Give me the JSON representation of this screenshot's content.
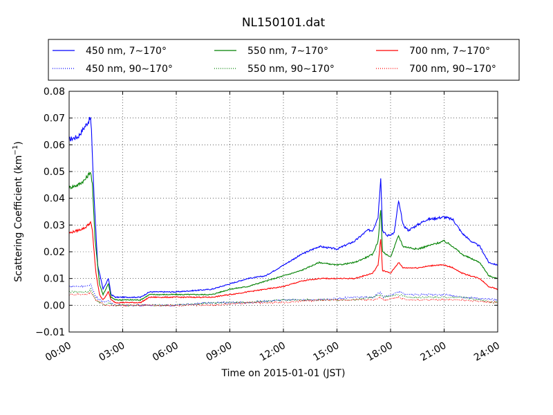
{
  "chart_data": {
    "type": "line",
    "title": "NL150101.dat",
    "xlabel": "Time on 2015-01-01 (JST)",
    "ylabel_main": "Scattering Coefficient (km",
    "ylabel_sup": "−1",
    "ylabel_close": ")",
    "xlim": [
      0,
      24
    ],
    "ylim": [
      -0.01,
      0.08
    ],
    "x_tick_values": [
      0,
      3,
      6,
      9,
      12,
      15,
      18,
      21,
      24
    ],
    "x_tick_labels": [
      "00:00",
      "03:00",
      "06:00",
      "09:00",
      "12:00",
      "15:00",
      "18:00",
      "21:00",
      "24:00"
    ],
    "y_tick_values": [
      -0.01,
      0.0,
      0.01,
      0.02,
      0.03,
      0.04,
      0.05,
      0.06,
      0.07,
      0.08
    ],
    "y_tick_labels": [
      "−0.01",
      "0.00",
      "0.01",
      "0.02",
      "0.03",
      "0.04",
      "0.05",
      "0.06",
      "0.07",
      "0.08"
    ],
    "grid": "dotted",
    "legend_position": "top, above plot, 3 columns",
    "series": [
      {
        "name": "450 nm, 7∼170°",
        "color": "#0000ff",
        "style": "solid",
        "points": [
          [
            0,
            0.062
          ],
          [
            0.5,
            0.063
          ],
          [
            0.9,
            0.067
          ],
          [
            1.2,
            0.07
          ],
          [
            1.25,
            0.065
          ],
          [
            1.4,
            0.04
          ],
          [
            1.6,
            0.015
          ],
          [
            1.9,
            0.006
          ],
          [
            2.2,
            0.01
          ],
          [
            2.35,
            0.004
          ],
          [
            2.6,
            0.003
          ],
          [
            3.0,
            0.003
          ],
          [
            4.0,
            0.003
          ],
          [
            4.5,
            0.005
          ],
          [
            6.0,
            0.005
          ],
          [
            8.0,
            0.006
          ],
          [
            9.0,
            0.008
          ],
          [
            10.0,
            0.01
          ],
          [
            11.0,
            0.011
          ],
          [
            12.0,
            0.015
          ],
          [
            13.0,
            0.019
          ],
          [
            14.0,
            0.022
          ],
          [
            15.0,
            0.021
          ],
          [
            16.0,
            0.024
          ],
          [
            16.7,
            0.028
          ],
          [
            17.0,
            0.028
          ],
          [
            17.3,
            0.033
          ],
          [
            17.45,
            0.048
          ],
          [
            17.55,
            0.028
          ],
          [
            17.8,
            0.026
          ],
          [
            18.2,
            0.027
          ],
          [
            18.45,
            0.039
          ],
          [
            18.7,
            0.03
          ],
          [
            19.0,
            0.028
          ],
          [
            19.5,
            0.03
          ],
          [
            20.0,
            0.032
          ],
          [
            21.0,
            0.033
          ],
          [
            21.5,
            0.032
          ],
          [
            22.0,
            0.027
          ],
          [
            22.5,
            0.024
          ],
          [
            23.0,
            0.022
          ],
          [
            23.5,
            0.016
          ],
          [
            24.0,
            0.015
          ]
        ]
      },
      {
        "name": "550 nm, 7∼170°",
        "color": "#008000",
        "style": "solid",
        "points": [
          [
            0,
            0.044
          ],
          [
            0.5,
            0.045
          ],
          [
            0.9,
            0.047
          ],
          [
            1.2,
            0.05
          ],
          [
            1.3,
            0.045
          ],
          [
            1.45,
            0.025
          ],
          [
            1.7,
            0.008
          ],
          [
            1.9,
            0.004
          ],
          [
            2.2,
            0.008
          ],
          [
            2.35,
            0.003
          ],
          [
            2.6,
            0.002
          ],
          [
            4.0,
            0.002
          ],
          [
            4.5,
            0.004
          ],
          [
            6.0,
            0.004
          ],
          [
            8.0,
            0.004
          ],
          [
            9.0,
            0.006
          ],
          [
            10.0,
            0.007
          ],
          [
            11.0,
            0.009
          ],
          [
            12.0,
            0.011
          ],
          [
            13.0,
            0.013
          ],
          [
            14.0,
            0.016
          ],
          [
            15.0,
            0.015
          ],
          [
            16.0,
            0.016
          ],
          [
            17.0,
            0.019
          ],
          [
            17.3,
            0.024
          ],
          [
            17.45,
            0.036
          ],
          [
            17.55,
            0.02
          ],
          [
            18.0,
            0.018
          ],
          [
            18.45,
            0.026
          ],
          [
            18.7,
            0.022
          ],
          [
            19.5,
            0.021
          ],
          [
            20.5,
            0.023
          ],
          [
            21.0,
            0.024
          ],
          [
            21.5,
            0.022
          ],
          [
            22.0,
            0.019
          ],
          [
            23.0,
            0.016
          ],
          [
            23.5,
            0.011
          ],
          [
            24.0,
            0.01
          ]
        ]
      },
      {
        "name": "700 nm, 7∼170°",
        "color": "#ff0000",
        "style": "solid",
        "points": [
          [
            0,
            0.027
          ],
          [
            0.5,
            0.028
          ],
          [
            0.9,
            0.029
          ],
          [
            1.2,
            0.031
          ],
          [
            1.3,
            0.028
          ],
          [
            1.5,
            0.012
          ],
          [
            1.7,
            0.004
          ],
          [
            1.9,
            0.002
          ],
          [
            2.2,
            0.005
          ],
          [
            2.35,
            0.002
          ],
          [
            2.6,
            0.001
          ],
          [
            4.0,
            0.001
          ],
          [
            4.5,
            0.003
          ],
          [
            6.0,
            0.003
          ],
          [
            8.0,
            0.003
          ],
          [
            9.0,
            0.004
          ],
          [
            10.0,
            0.005
          ],
          [
            11.0,
            0.006
          ],
          [
            12.0,
            0.007
          ],
          [
            13.0,
            0.009
          ],
          [
            14.0,
            0.01
          ],
          [
            15.0,
            0.01
          ],
          [
            16.0,
            0.01
          ],
          [
            17.0,
            0.012
          ],
          [
            17.3,
            0.015
          ],
          [
            17.45,
            0.025
          ],
          [
            17.55,
            0.013
          ],
          [
            18.0,
            0.012
          ],
          [
            18.45,
            0.016
          ],
          [
            18.7,
            0.014
          ],
          [
            19.5,
            0.014
          ],
          [
            20.5,
            0.015
          ],
          [
            21.0,
            0.015
          ],
          [
            21.5,
            0.014
          ],
          [
            22.0,
            0.012
          ],
          [
            23.0,
            0.01
          ],
          [
            23.5,
            0.007
          ],
          [
            24.0,
            0.006
          ]
        ]
      },
      {
        "name": "450 nm, 90∼170°",
        "color": "#0000ff",
        "style": "dotted",
        "points": [
          [
            0,
            0.007
          ],
          [
            1.0,
            0.007
          ],
          [
            1.2,
            0.008
          ],
          [
            1.5,
            0.003
          ],
          [
            2.0,
            0.001
          ],
          [
            2.2,
            0.002
          ],
          [
            2.5,
            0.0
          ],
          [
            4.0,
            0.0
          ],
          [
            6.0,
            0.0
          ],
          [
            8.0,
            0.001
          ],
          [
            10.0,
            0.001
          ],
          [
            12.0,
            0.002
          ],
          [
            14.0,
            0.002
          ],
          [
            16.0,
            0.003
          ],
          [
            17.0,
            0.003
          ],
          [
            17.45,
            0.005
          ],
          [
            17.6,
            0.003
          ],
          [
            18.45,
            0.005
          ],
          [
            19.0,
            0.004
          ],
          [
            21.0,
            0.004
          ],
          [
            22.0,
            0.003
          ],
          [
            24.0,
            0.002
          ]
        ]
      },
      {
        "name": "550 nm, 90∼170°",
        "color": "#008000",
        "style": "dotted",
        "points": [
          [
            0,
            0.005
          ],
          [
            1.0,
            0.005
          ],
          [
            1.2,
            0.006
          ],
          [
            1.5,
            0.002
          ],
          [
            2.0,
            0.0
          ],
          [
            2.2,
            0.001
          ],
          [
            2.5,
            0.0
          ],
          [
            4.0,
            0.0
          ],
          [
            6.0,
            0.0
          ],
          [
            8.0,
            0.001
          ],
          [
            10.0,
            0.001
          ],
          [
            12.0,
            0.002
          ],
          [
            14.0,
            0.002
          ],
          [
            16.0,
            0.002
          ],
          [
            17.0,
            0.003
          ],
          [
            17.45,
            0.004
          ],
          [
            17.6,
            0.003
          ],
          [
            18.45,
            0.004
          ],
          [
            19.0,
            0.003
          ],
          [
            21.0,
            0.003
          ],
          [
            22.0,
            0.003
          ],
          [
            24.0,
            0.001
          ]
        ]
      },
      {
        "name": "700 nm, 90∼170°",
        "color": "#ff0000",
        "style": "dotted",
        "points": [
          [
            0,
            0.004
          ],
          [
            1.0,
            0.004
          ],
          [
            1.2,
            0.005
          ],
          [
            1.5,
            0.002
          ],
          [
            2.0,
            0.0
          ],
          [
            2.5,
            0.0
          ],
          [
            4.0,
            0.0
          ],
          [
            6.0,
            0.0
          ],
          [
            8.0,
            0.0
          ],
          [
            10.0,
            0.001
          ],
          [
            12.0,
            0.001
          ],
          [
            14.0,
            0.002
          ],
          [
            16.0,
            0.002
          ],
          [
            17.0,
            0.002
          ],
          [
            17.45,
            0.003
          ],
          [
            17.6,
            0.002
          ],
          [
            18.45,
            0.003
          ],
          [
            19.0,
            0.002
          ],
          [
            21.0,
            0.002
          ],
          [
            22.0,
            0.002
          ],
          [
            24.0,
            0.001
          ]
        ]
      }
    ],
    "legend_order": [
      0,
      1,
      2,
      3,
      4,
      5
    ]
  }
}
